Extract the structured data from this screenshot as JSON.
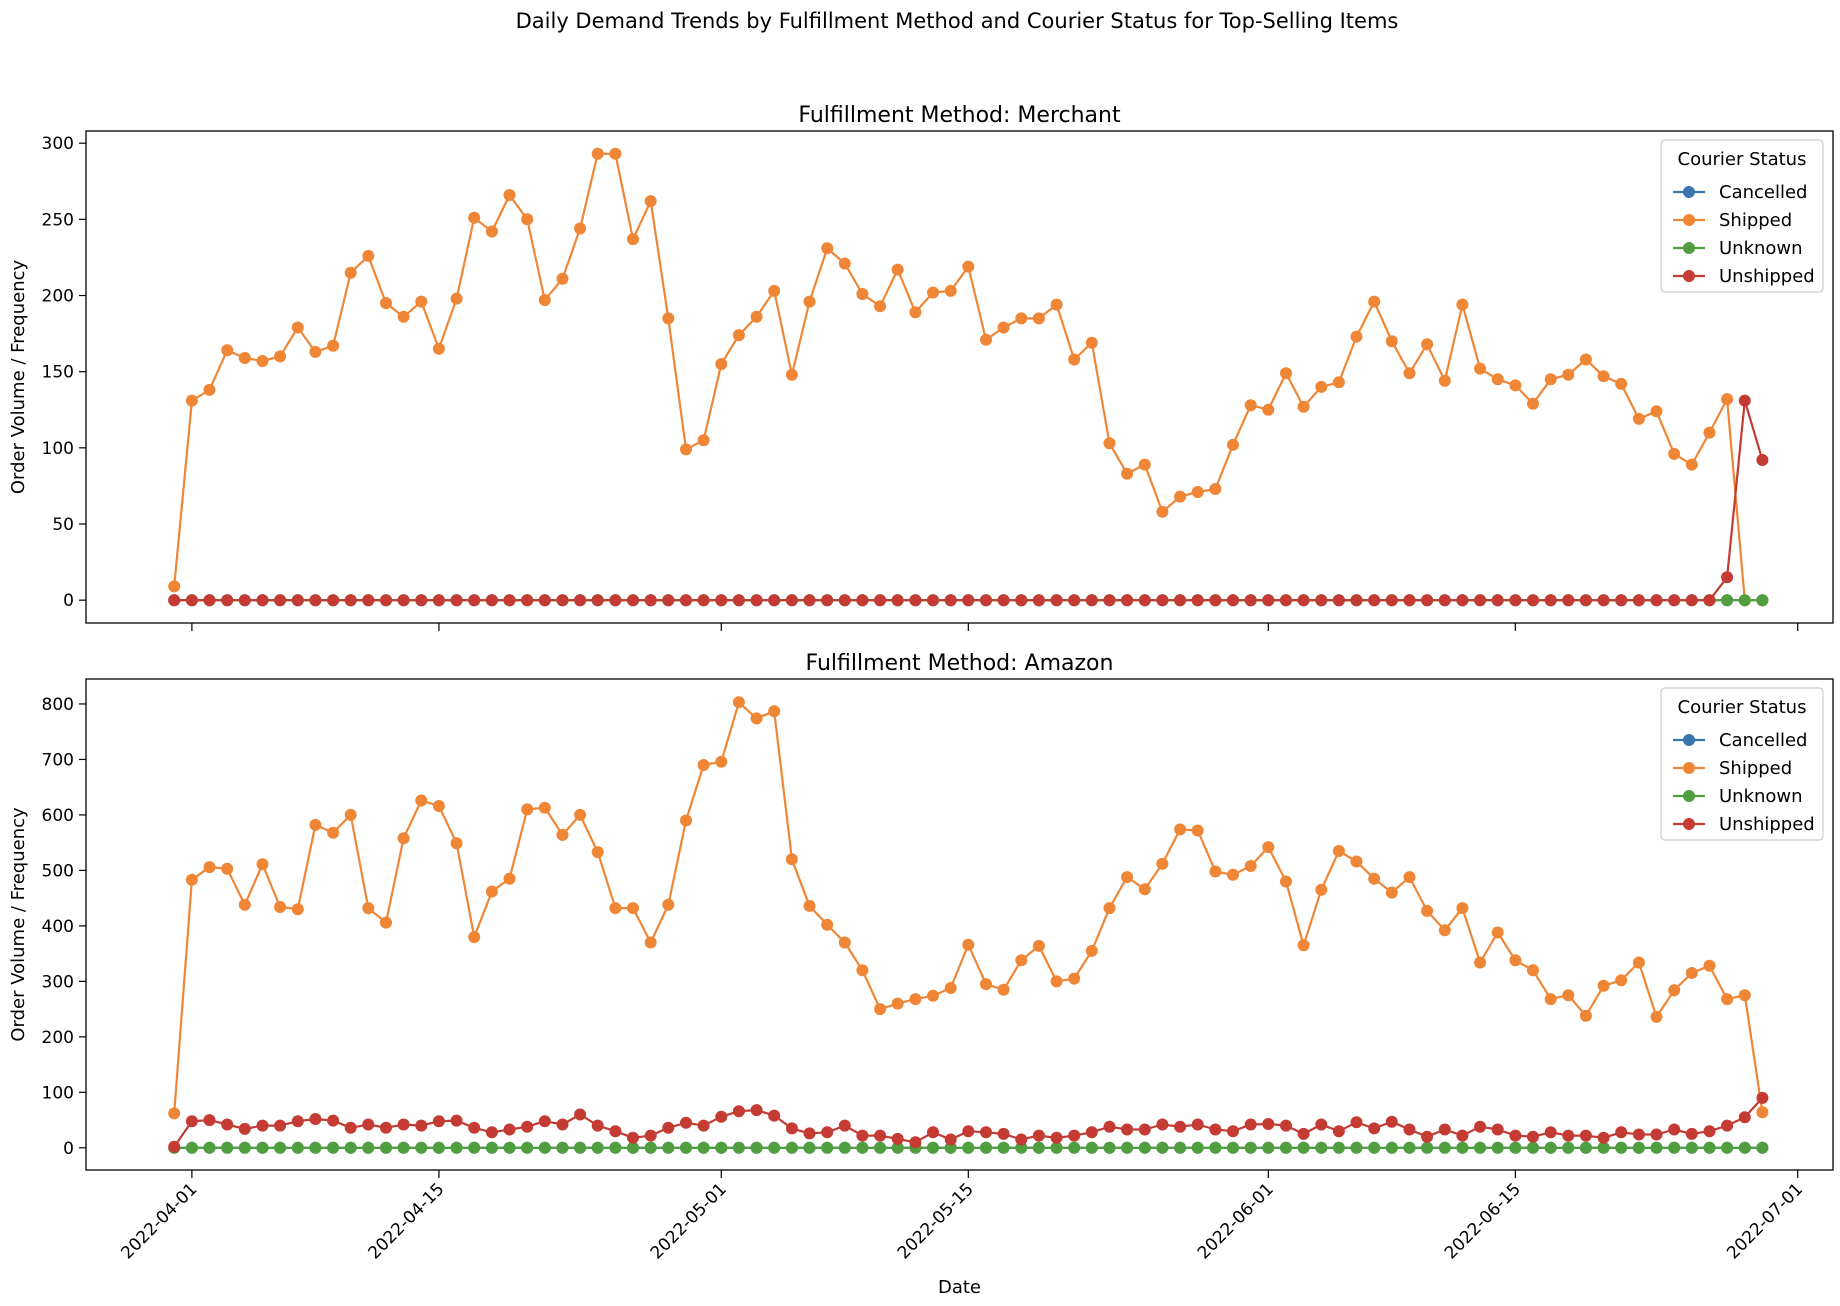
{
  "figure": {
    "title": "Daily Demand Trends by Fulfillment Method and Courier Status for Top-Selling Items"
  },
  "colors": {
    "Cancelled": "#3a75b0",
    "Shipped": "#ef8636",
    "Unknown": "#519e3e",
    "Unshipped": "#c43b33"
  },
  "chart_data": [
    {
      "type": "line",
      "title": "Fulfillment Method: Merchant",
      "xlabel": "",
      "ylabel": "Order Volume / Frequency",
      "x_start": "2022-03-31",
      "x_end": "2022-06-29",
      "xlim": [
        "2022-03-26",
        "2022-07-03"
      ],
      "ylim": [
        -15,
        308
      ],
      "yticks": [
        0,
        50,
        100,
        150,
        200,
        250,
        300
      ],
      "xticks": [
        "2022-04-01",
        "2022-04-15",
        "2022-05-01",
        "2022-05-15",
        "2022-06-01",
        "2022-06-15",
        "2022-07-01"
      ],
      "grid": false,
      "legend": {
        "title": "Courier Status",
        "placement": "top-right",
        "entries": [
          "Cancelled",
          "Shipped",
          "Unknown",
          "Unshipped"
        ]
      },
      "series": [
        {
          "name": "Cancelled",
          "values": [
            0,
            0,
            0,
            0,
            0,
            0,
            0,
            0,
            0,
            0,
            0,
            0,
            0,
            0,
            0,
            0,
            0,
            0,
            0,
            0,
            0,
            0,
            0,
            0,
            0,
            0,
            0,
            0,
            0,
            0,
            0,
            0,
            0,
            0,
            0,
            0,
            0,
            0,
            0,
            0,
            0,
            0,
            0,
            0,
            0,
            0,
            0,
            0,
            0,
            0,
            0,
            0,
            0,
            0,
            0,
            0,
            0,
            0,
            0,
            0,
            0,
            0,
            0,
            0,
            0,
            0,
            0,
            0,
            0,
            0,
            0,
            0,
            0,
            0,
            0,
            0,
            0,
            0,
            0,
            0,
            0,
            0,
            0,
            0,
            0,
            0,
            0,
            0,
            0,
            0,
            0
          ]
        },
        {
          "name": "Shipped",
          "values": [
            9,
            131,
            138,
            164,
            159,
            157,
            160,
            179,
            163,
            167,
            215,
            226,
            195,
            186,
            196,
            165,
            198,
            251,
            242,
            266,
            250,
            197,
            211,
            244,
            293,
            293,
            237,
            262,
            185,
            99,
            105,
            155,
            174,
            186,
            203,
            148,
            196,
            231,
            221,
            201,
            193,
            217,
            189,
            202,
            203,
            219,
            171,
            179,
            185,
            185,
            194,
            158,
            169,
            103,
            83,
            89,
            58,
            68,
            71,
            73,
            102,
            128,
            125,
            149,
            127,
            140,
            143,
            173,
            196,
            170,
            149,
            168,
            144,
            194,
            152,
            145,
            141,
            129,
            145,
            148,
            158,
            147,
            142,
            119,
            124,
            96,
            89,
            110,
            132,
            0,
            0
          ]
        },
        {
          "name": "Unknown",
          "values": [
            0,
            0,
            0,
            0,
            0,
            0,
            0,
            0,
            0,
            0,
            0,
            0,
            0,
            0,
            0,
            0,
            0,
            0,
            0,
            0,
            0,
            0,
            0,
            0,
            0,
            0,
            0,
            0,
            0,
            0,
            0,
            0,
            0,
            0,
            0,
            0,
            0,
            0,
            0,
            0,
            0,
            0,
            0,
            0,
            0,
            0,
            0,
            0,
            0,
            0,
            0,
            0,
            0,
            0,
            0,
            0,
            0,
            0,
            0,
            0,
            0,
            0,
            0,
            0,
            0,
            0,
            0,
            0,
            0,
            0,
            0,
            0,
            0,
            0,
            0,
            0,
            0,
            0,
            0,
            0,
            0,
            0,
            0,
            0,
            0,
            0,
            0,
            0,
            0,
            0,
            0
          ]
        },
        {
          "name": "Unshipped",
          "values": [
            0,
            0,
            0,
            0,
            0,
            0,
            0,
            0,
            0,
            0,
            0,
            0,
            0,
            0,
            0,
            0,
            0,
            0,
            0,
            0,
            0,
            0,
            0,
            0,
            0,
            0,
            0,
            0,
            0,
            0,
            0,
            0,
            0,
            0,
            0,
            0,
            0,
            0,
            0,
            0,
            0,
            0,
            0,
            0,
            0,
            0,
            0,
            0,
            0,
            0,
            0,
            0,
            0,
            0,
            0,
            0,
            0,
            0,
            0,
            0,
            0,
            0,
            0,
            0,
            0,
            0,
            0,
            0,
            0,
            0,
            0,
            0,
            0,
            0,
            0,
            0,
            0,
            0,
            0,
            0,
            0,
            0,
            0,
            0,
            0,
            0,
            0,
            0,
            15,
            131,
            92
          ]
        }
      ]
    },
    {
      "type": "line",
      "title": "Fulfillment Method: Amazon",
      "xlabel": "Date",
      "ylabel": "Order Volume / Frequency",
      "x_start": "2022-03-31",
      "x_end": "2022-06-29",
      "xlim": [
        "2022-03-26",
        "2022-07-03"
      ],
      "ylim": [
        -40,
        845
      ],
      "yticks": [
        0,
        100,
        200,
        300,
        400,
        500,
        600,
        700,
        800
      ],
      "xticks": [
        "2022-04-01",
        "2022-04-15",
        "2022-05-01",
        "2022-05-15",
        "2022-06-01",
        "2022-06-15",
        "2022-07-01"
      ],
      "grid": false,
      "legend": {
        "title": "Courier Status",
        "placement": "top-right",
        "entries": [
          "Cancelled",
          "Shipped",
          "Unknown",
          "Unshipped"
        ]
      },
      "series": [
        {
          "name": "Cancelled",
          "values": [
            0,
            0,
            0,
            0,
            0,
            0,
            0,
            0,
            0,
            0,
            0,
            0,
            0,
            0,
            0,
            0,
            0,
            0,
            0,
            0,
            0,
            0,
            0,
            0,
            0,
            0,
            0,
            0,
            0,
            0,
            0,
            0,
            0,
            0,
            0,
            0,
            0,
            0,
            0,
            0,
            0,
            0,
            0,
            0,
            0,
            0,
            0,
            0,
            0,
            0,
            0,
            0,
            0,
            0,
            0,
            0,
            0,
            0,
            0,
            0,
            0,
            0,
            0,
            0,
            0,
            0,
            0,
            0,
            0,
            0,
            0,
            0,
            0,
            0,
            0,
            0,
            0,
            0,
            0,
            0,
            0,
            0,
            0,
            0,
            0,
            0,
            0,
            0,
            0,
            0,
            0
          ]
        },
        {
          "name": "Shipped",
          "values": [
            62,
            483,
            506,
            503,
            438,
            511,
            434,
            430,
            582,
            568,
            600,
            432,
            406,
            558,
            626,
            616,
            549,
            380,
            462,
            485,
            610,
            613,
            564,
            600,
            533,
            432,
            432,
            370,
            438,
            590,
            690,
            696,
            803,
            774,
            787,
            520,
            436,
            402,
            370,
            320,
            250,
            260,
            268,
            274,
            288,
            366,
            295,
            285,
            338,
            364,
            300,
            305,
            355,
            432,
            488,
            466,
            512,
            574,
            572,
            498,
            492,
            508,
            542,
            480,
            365,
            465,
            535,
            516,
            485,
            460,
            488,
            427,
            392,
            432,
            334,
            388,
            338,
            320,
            268,
            275,
            238,
            292,
            302,
            334,
            236,
            284,
            315,
            328,
            268,
            275,
            64
          ]
        },
        {
          "name": "Unknown",
          "values": [
            0,
            0,
            0,
            0,
            0,
            0,
            0,
            0,
            0,
            0,
            0,
            0,
            0,
            0,
            0,
            0,
            0,
            0,
            0,
            0,
            0,
            0,
            0,
            0,
            0,
            0,
            0,
            0,
            0,
            0,
            0,
            0,
            0,
            0,
            0,
            0,
            0,
            0,
            0,
            0,
            0,
            0,
            0,
            0,
            0,
            0,
            0,
            0,
            0,
            0,
            0,
            0,
            0,
            0,
            0,
            0,
            0,
            0,
            0,
            0,
            0,
            0,
            0,
            0,
            0,
            0,
            0,
            0,
            0,
            0,
            0,
            0,
            0,
            0,
            0,
            0,
            0,
            0,
            0,
            0,
            0,
            0,
            0,
            0,
            0,
            0,
            0,
            0,
            0,
            0,
            0
          ]
        },
        {
          "name": "Unshipped",
          "values": [
            2,
            48,
            50,
            42,
            34,
            40,
            40,
            48,
            52,
            49,
            36,
            42,
            36,
            42,
            40,
            48,
            49,
            36,
            28,
            33,
            38,
            48,
            42,
            60,
            40,
            30,
            18,
            22,
            36,
            45,
            40,
            56,
            66,
            68,
            58,
            35,
            26,
            28,
            40,
            22,
            22,
            16,
            10,
            28,
            15,
            30,
            28,
            25,
            15,
            22,
            18,
            22,
            28,
            38,
            33,
            33,
            42,
            38,
            42,
            33,
            30,
            42,
            43,
            40,
            25,
            42,
            30,
            46,
            35,
            47,
            33,
            20,
            33,
            22,
            38,
            33,
            22,
            20,
            28,
            22,
            22,
            18,
            28,
            24,
            24,
            33,
            25,
            30,
            40,
            55,
            90
          ]
        }
      ]
    }
  ]
}
